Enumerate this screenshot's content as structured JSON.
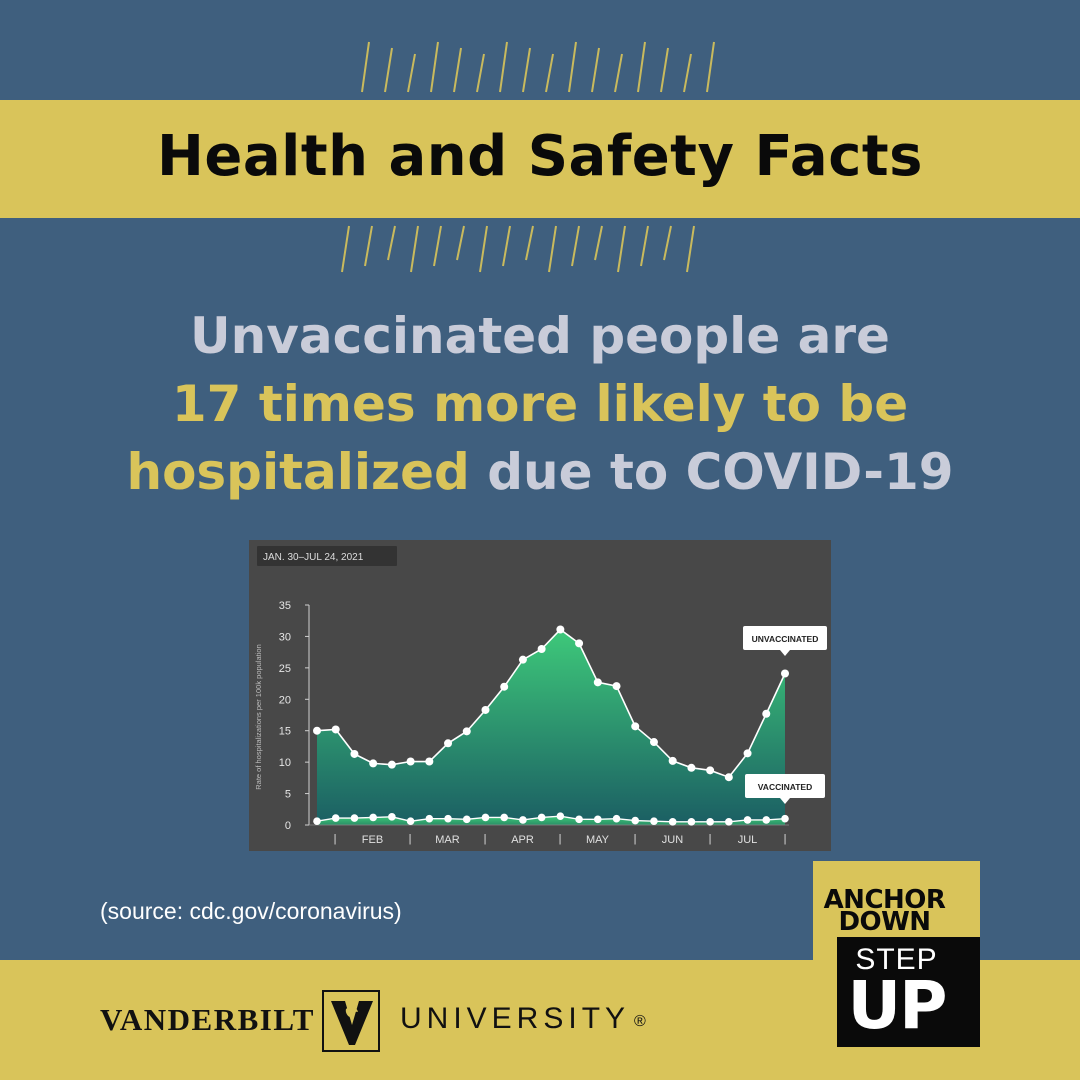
{
  "title": "Health and Safety Facts",
  "headline": {
    "line1": "Unvaccinated people are",
    "line2": "17 times more likely to be",
    "line3_highlight": "hospitalized",
    "line3_rest": " due to COVID-19"
  },
  "source": "(source: cdc.gov/coronavirus)",
  "footer": {
    "logo_left": "VANDERBILT",
    "logo_right": "UNIVERSITY",
    "logo_reg": "®"
  },
  "badge": {
    "line1": "ANCHOR",
    "line2": "DOWN",
    "line3": "STEP",
    "line4": "UP"
  },
  "colors": {
    "background": "#3f5f7e",
    "gold": "#d9c45a",
    "headline_gray": "#c9ccd9",
    "chart_bg": "#484848",
    "area_top": "#3ec97a",
    "area_bottom": "#1b5e63"
  },
  "chart_data": {
    "type": "area",
    "date_range_label": "JAN. 30–JUL 24, 2021",
    "ylabel": "Rate of hospitalizations per 100k population",
    "ylim": [
      0,
      35
    ],
    "yticks": [
      0,
      5,
      10,
      15,
      20,
      25,
      30,
      35
    ],
    "month_labels": [
      "FEB",
      "MAR",
      "APR",
      "MAY",
      "JUN",
      "JUL"
    ],
    "grid": false,
    "series": [
      {
        "name": "UNVACCINATED",
        "values": [
          15.0,
          15.2,
          11.3,
          9.8,
          9.6,
          10.1,
          10.1,
          13.0,
          14.9,
          18.3,
          22.0,
          26.3,
          28.0,
          31.1,
          28.9,
          22.7,
          22.1,
          15.7,
          13.2,
          10.2,
          9.1,
          8.7,
          7.6,
          11.4,
          17.7,
          24.1
        ]
      },
      {
        "name": "VACCINATED",
        "values": [
          0.6,
          1.1,
          1.1,
          1.2,
          1.3,
          0.6,
          1.0,
          1.0,
          0.9,
          1.2,
          1.2,
          0.8,
          1.2,
          1.4,
          0.9,
          0.9,
          1.0,
          0.7,
          0.6,
          0.5,
          0.5,
          0.5,
          0.5,
          0.8,
          0.8,
          1.0
        ]
      }
    ]
  }
}
